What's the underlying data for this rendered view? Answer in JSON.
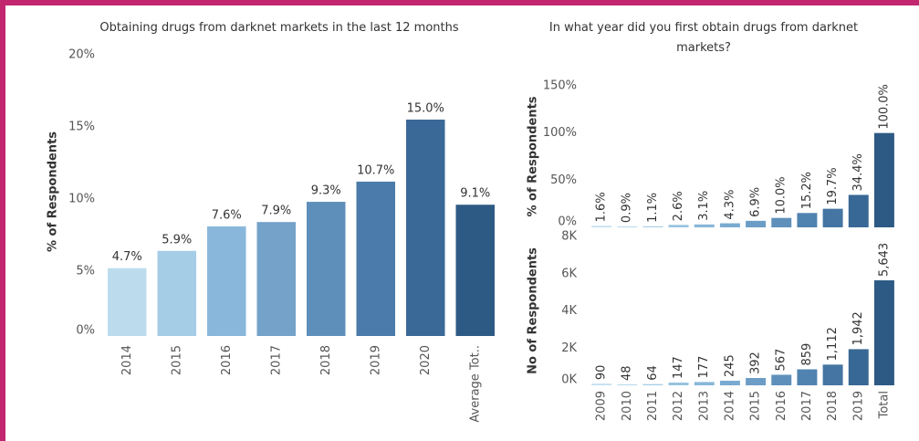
{
  "chart_data": [
    {
      "type": "bar",
      "title": "Obtaining drugs from darknet markets in the last 12 months",
      "y_label": "% of Respondents",
      "categories": [
        "2014",
        "2015",
        "2016",
        "2017",
        "2018",
        "2019",
        "2020",
        "Average Tot.."
      ],
      "values": [
        4.7,
        5.9,
        7.6,
        7.9,
        9.3,
        10.7,
        15.0,
        9.1
      ],
      "value_labels": [
        "4.7%",
        "5.9%",
        "7.6%",
        "7.9%",
        "9.3%",
        "10.7%",
        "15.0%",
        "9.1%"
      ],
      "colors": [
        "#bcdcee",
        "#a5cde6",
        "#88b7db",
        "#74a2c9",
        "#5e8fbb",
        "#4b7baa",
        "#3b6997",
        "#2d5a84"
      ],
      "ylim": [
        0,
        20
      ],
      "yticks": [
        {
          "value": 0,
          "label": "0%"
        },
        {
          "value": 5,
          "label": "5%"
        },
        {
          "value": 10,
          "label": "10%"
        },
        {
          "value": 15,
          "label": "15%"
        },
        {
          "value": 20,
          "label": "20%"
        }
      ]
    },
    {
      "type": "bar",
      "title": "In what year did you first obtain drugs from darknet markets?",
      "y_label": "% of Respondents",
      "values": [
        1.6,
        0.9,
        1.1,
        2.6,
        3.1,
        4.3,
        6.9,
        10.0,
        15.2,
        19.7,
        34.4,
        100.0
      ],
      "value_labels": [
        "1.6%",
        "0.9%",
        "1.1%",
        "2.6%",
        "3.1%",
        "4.3%",
        "6.9%",
        "10.0%",
        "15.2%",
        "19.7%",
        "34.4%",
        "100.0%"
      ],
      "colors": [
        "#c2e0f0",
        "#b4d7eb",
        "#a6cee6",
        "#97c3e0",
        "#88b7d9",
        "#79aad0",
        "#6b9dc6",
        "#5e90bb",
        "#5183b0",
        "#4475a3",
        "#386895",
        "#2d5a84"
      ],
      "ylim": [
        0,
        150
      ],
      "yticks": [
        {
          "value": 0,
          "label": "0%"
        },
        {
          "value": 50,
          "label": "50%"
        },
        {
          "value": 100,
          "label": "100%"
        },
        {
          "value": 150,
          "label": "150%"
        }
      ]
    },
    {
      "type": "bar",
      "y_label": "No of Respondents",
      "categories": [
        "2009",
        "2010",
        "2011",
        "2012",
        "2013",
        "2014",
        "2015",
        "2016",
        "2017",
        "2018",
        "2019",
        "Total"
      ],
      "values": [
        90,
        48,
        64,
        147,
        177,
        245,
        392,
        567,
        859,
        1112,
        1942,
        5643
      ],
      "value_labels": [
        "90",
        "48",
        "64",
        "147",
        "177",
        "245",
        "392",
        "567",
        "859",
        "1,112",
        "1,942",
        "5,643"
      ],
      "colors": [
        "#c2e0f0",
        "#b4d7eb",
        "#a6cee6",
        "#97c3e0",
        "#88b7d9",
        "#79aad0",
        "#6b9dc6",
        "#5e90bb",
        "#5183b0",
        "#4475a3",
        "#386895",
        "#2d5a84"
      ],
      "ylim": [
        0,
        8000
      ],
      "yticks": [
        {
          "value": 0,
          "label": "0K"
        },
        {
          "value": 2000,
          "label": "2K"
        },
        {
          "value": 4000,
          "label": "4K"
        },
        {
          "value": 6000,
          "label": "6K"
        },
        {
          "value": 8000,
          "label": "8K"
        }
      ]
    }
  ]
}
